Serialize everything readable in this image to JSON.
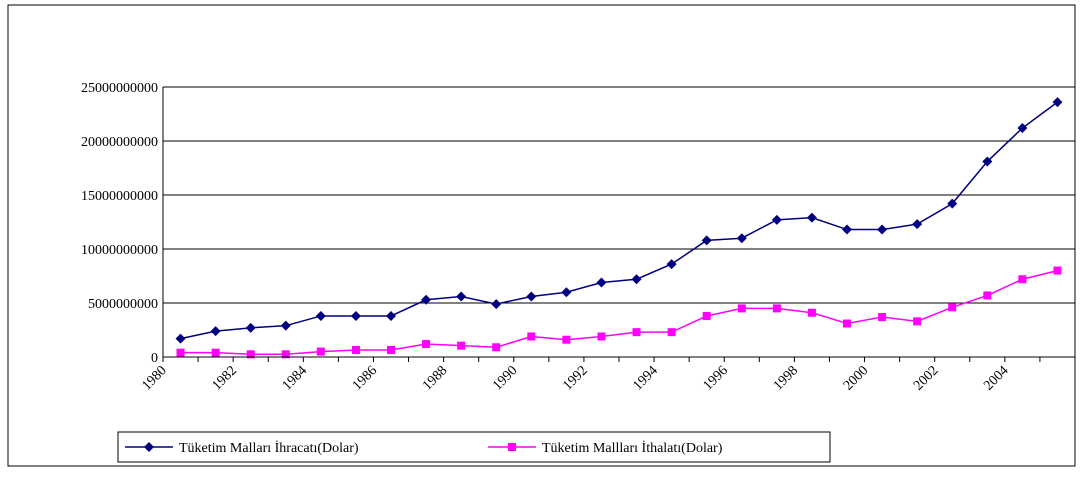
{
  "chart_data": {
    "type": "line",
    "categories": [
      "1980",
      null,
      "1982",
      null,
      "1984",
      null,
      "1986",
      null,
      "1988",
      null,
      "1990",
      null,
      "1992",
      null,
      "1994",
      null,
      "1996",
      null,
      "1998",
      null,
      "2000",
      null,
      "2002",
      null,
      "2004",
      null
    ],
    "series": [
      {
        "name": "Tüketim Malları İhracatı(Dolar)",
        "color": "#000080",
        "marker": "diamond",
        "values": [
          1700000000,
          2400000000,
          2700000000,
          2900000000,
          3800000000,
          3800000000,
          3800000000,
          5300000000,
          5600000000,
          4900000000,
          5600000000,
          6000000000,
          6900000000,
          7200000000,
          8600000000,
          10800000000,
          11000000000,
          12700000000,
          12900000000,
          11800000000,
          11800000000,
          12300000000,
          14200000000,
          18100000000,
          21200000000,
          23600000000
        ]
      },
      {
        "name": "Tüketim Mallları İthalatı(Dolar)",
        "color": "#ff00ff",
        "marker": "square",
        "values": [
          400000000,
          400000000,
          250000000,
          250000000,
          500000000,
          650000000,
          650000000,
          1200000000,
          1050000000,
          900000000,
          1900000000,
          1600000000,
          1900000000,
          2300000000,
          2300000000,
          3800000000,
          4500000000,
          4500000000,
          4100000000,
          3100000000,
          3700000000,
          3300000000,
          4600000000,
          5700000000,
          7200000000,
          8000000000
        ]
      }
    ],
    "ylim": [
      0,
      25000000000
    ],
    "yticks": [
      0,
      5000000000,
      10000000000,
      15000000000,
      20000000000,
      25000000000
    ],
    "grid": true,
    "legend": "bottom"
  }
}
